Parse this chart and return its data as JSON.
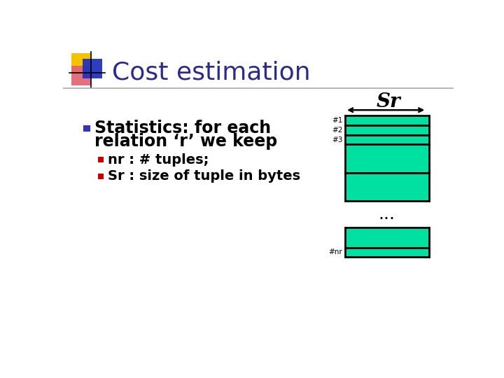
{
  "title": "Cost estimation",
  "title_color": "#2b2b8c",
  "title_fontsize": 26,
  "background_color": "#ffffff",
  "bullet_main_line1": "Statistics: for each",
  "bullet_main_line2": "relation ‘r’ we keep",
  "bullet_sub1": "nr : # tuples;",
  "bullet_sub2": "Sr : size of tuple in bytes",
  "sr_label": "Sr",
  "arrow_color": "#000000",
  "block_fill_color": "#00e0a0",
  "block_edge_color": "#000000",
  "dots_label": "...",
  "row_labels": [
    "#1",
    "#2",
    "#3"
  ],
  "last_label": "#nr",
  "bullet_square_color_main": "#3333bb",
  "bullet_square_color_sub": "#cc0000",
  "main_text_color": "#000000",
  "divider_color": "#aaaaaa",
  "logo_yellow": "#f5c200",
  "logo_red": "#e06070",
  "logo_blue": "#2233bb"
}
